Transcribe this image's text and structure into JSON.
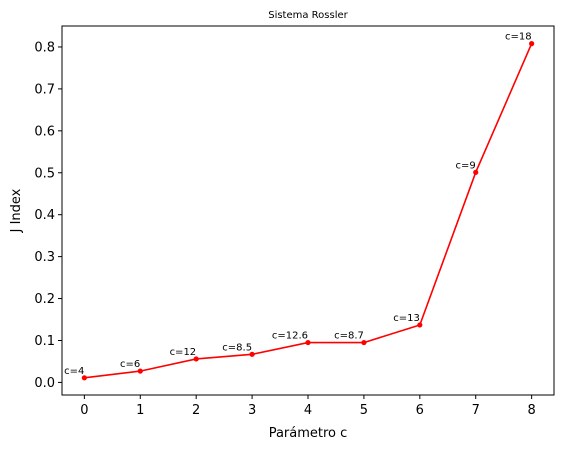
{
  "chart_data": {
    "type": "line",
    "title": "Sistema Rossler",
    "xlabel": "Parámetro c",
    "ylabel": "J Index",
    "x": [
      0,
      1,
      2,
      3,
      4,
      5,
      6,
      7,
      8
    ],
    "xticks": [
      "0",
      "1",
      "2",
      "3",
      "4",
      "5",
      "6",
      "7",
      "8"
    ],
    "yticks": [
      "0.0",
      "0.1",
      "0.2",
      "0.3",
      "0.4",
      "0.5",
      "0.6",
      "0.7",
      "0.8"
    ],
    "xlim": [
      -0.4,
      8.4
    ],
    "ylim": [
      -0.03,
      0.85
    ],
    "grid": false,
    "series": [
      {
        "color": "#ff0000",
        "marker": "circle",
        "values": [
          0.011,
          0.027,
          0.056,
          0.067,
          0.095,
          0.095,
          0.137,
          0.501,
          0.808
        ],
        "point_labels": [
          "c=4",
          "c=6",
          "c=12",
          "c=8.5",
          "c=12.6",
          "c=8.7",
          "c=13",
          "c=9",
          "c=18"
        ]
      }
    ]
  }
}
